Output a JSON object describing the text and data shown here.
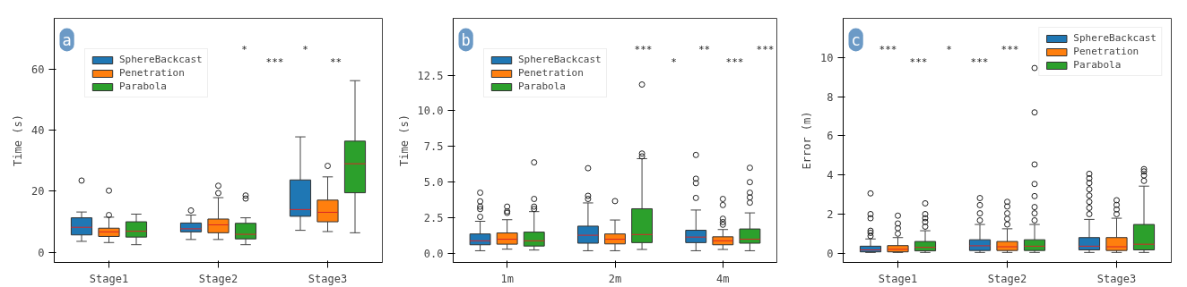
{
  "chart_data": [
    {
      "type": "box",
      "title": "a",
      "ylabel": "Time (s)",
      "categories": [
        "Stage1",
        "Stage2",
        "Stage3"
      ],
      "ylim": [
        -3.3,
        76.6
      ],
      "yticks": [
        0,
        20,
        40,
        60
      ],
      "grid": false,
      "legend": "top left",
      "series": [
        {
          "name": "SphereBackcast",
          "color": "#1f77b4",
          "boxes": [
            {
              "low": 3.6,
              "q1": 5.7,
              "median": 8.2,
              "q3": 11.3,
              "high": 13.2,
              "outliers": [
                23.5
              ]
            },
            {
              "low": 4.2,
              "q1": 6.7,
              "median": 7.7,
              "q3": 9.6,
              "high": 12.2,
              "outliers": [
                13.7
              ]
            },
            {
              "low": 7.2,
              "q1": 11.8,
              "median": 14.0,
              "q3": 23.7,
              "high": 37.8
            }
          ]
        },
        {
          "name": "Penetration",
          "color": "#ff7f0e",
          "boxes": [
            {
              "low": 3.2,
              "q1": 5.2,
              "median": 6.7,
              "q3": 7.9,
              "high": 11.5,
              "outliers": [
                12.2,
                20.2
              ]
            },
            {
              "low": 4.2,
              "q1": 6.4,
              "median": 9.0,
              "q3": 10.9,
              "high": 17.9,
              "outliers": [
                19.4,
                21.8
              ]
            },
            {
              "low": 6.8,
              "q1": 10.0,
              "median": 13.1,
              "q3": 17.1,
              "high": 24.7,
              "outliers": [
                28.3
              ]
            }
          ]
        },
        {
          "name": "Parabola",
          "color": "#2ca02c",
          "boxes": [
            {
              "low": 2.5,
              "q1": 5.0,
              "median": 6.9,
              "q3": 10.0,
              "high": 12.5
            },
            {
              "low": 2.5,
              "q1": 4.4,
              "median": 5.9,
              "q3": 9.5,
              "high": 11.3,
              "outliers": [
                17.6,
                18.6
              ]
            },
            {
              "low": 6.4,
              "q1": 19.5,
              "median": 29.0,
              "q3": 36.4,
              "high": 56.2
            }
          ]
        }
      ],
      "annotations": [
        "*",
        "***",
        "*",
        "**"
      ]
    },
    {
      "type": "box",
      "title": "b",
      "ylabel": "Time (s)",
      "categories": [
        "1m",
        "2m",
        "4m"
      ],
      "ylim": [
        -0.65,
        16.5
      ],
      "yticks": [
        {
          "value": 0,
          "label": "0.0"
        },
        {
          "value": 2.5,
          "label": "2.5"
        },
        {
          "value": 5,
          "label": "5.0"
        },
        {
          "value": 7.5,
          "label": "7.5"
        },
        {
          "value": 10,
          "label": "10.0"
        },
        {
          "value": 12.5,
          "label": "12.5"
        }
      ],
      "grid": false,
      "legend": "top left",
      "series": [
        {
          "name": "SphereBackcast",
          "color": "#1f77b4",
          "boxes": [
            {
              "low": 0.17,
              "q1": 0.59,
              "median": 0.87,
              "q3": 1.35,
              "high": 2.24,
              "outliers": [
                2.55,
                3.1,
                3.27,
                3.64,
                4.25
              ]
            },
            {
              "low": 0.17,
              "q1": 0.7,
              "median": 1.26,
              "q3": 1.9,
              "high": 3.53,
              "outliers": [
                3.81,
                4.03,
                5.97
              ]
            },
            {
              "low": 0.17,
              "q1": 0.74,
              "median": 1.13,
              "q3": 1.61,
              "high": 3.03,
              "outliers": [
                3.88,
                4.92,
                5.23,
                6.9
              ]
            }
          ]
        },
        {
          "name": "Penetration",
          "color": "#ff7f0e",
          "boxes": [
            {
              "low": 0.28,
              "q1": 0.63,
              "median": 0.98,
              "q3": 1.42,
              "high": 2.35,
              "outliers": [
                2.83,
                2.94,
                3.27
              ]
            },
            {
              "low": 0.17,
              "q1": 0.65,
              "median": 0.98,
              "q3": 1.35,
              "high": 2.33,
              "outliers": [
                3.66
              ]
            },
            {
              "low": 0.26,
              "q1": 0.59,
              "median": 0.87,
              "q3": 1.15,
              "high": 1.66,
              "outliers": [
                2.0,
                2.18,
                2.42,
                3.38,
                3.81
              ]
            }
          ]
        },
        {
          "name": "Parabola",
          "color": "#2ca02c",
          "boxes": [
            {
              "low": 0.22,
              "q1": 0.5,
              "median": 0.87,
              "q3": 1.48,
              "high": 2.92,
              "outliers": [
                3.1,
                3.27,
                3.81,
                6.38
              ]
            },
            {
              "low": 0.26,
              "q1": 0.74,
              "median": 1.31,
              "q3": 3.12,
              "high": 6.64,
              "outliers": [
                6.8,
                7.0,
                11.85
              ]
            },
            {
              "low": 0.17,
              "q1": 0.7,
              "median": 0.98,
              "q3": 1.7,
              "high": 2.83,
              "outliers": [
                3.55,
                3.92,
                4.25,
                4.99,
                6.0
              ]
            }
          ]
        }
      ],
      "annotations": [
        "***",
        "*",
        "**",
        "***",
        "***"
      ]
    },
    {
      "type": "box",
      "title": "c",
      "ylabel": "Error (m)",
      "categories": [
        "Stage1",
        "Stage2",
        "Stage3"
      ],
      "ylim": [
        -0.48,
        12.0
      ],
      "yticks": [
        0,
        2,
        4,
        6,
        8,
        10
      ],
      "grid": false,
      "legend": "top right",
      "series": [
        {
          "name": "SphereBackcast",
          "color": "#1f77b4",
          "boxes": [
            {
              "low": 0.03,
              "q1": 0.06,
              "median": 0.16,
              "q3": 0.35,
              "high": 0.72,
              "outliers": [
                0.87,
                1.03,
                1.14,
                1.78,
                1.99,
                3.05
              ]
            },
            {
              "low": 0.03,
              "q1": 0.13,
              "median": 0.37,
              "q3": 0.68,
              "high": 1.46,
              "outliers": [
                1.67,
                2.03,
                2.45,
                2.81
              ]
            },
            {
              "low": 0.03,
              "q1": 0.16,
              "median": 0.35,
              "q3": 0.79,
              "high": 1.72,
              "outliers": [
                1.99,
                2.31,
                2.62,
                2.94,
                3.26,
                3.58,
                3.82,
                4.05
              ]
            }
          ]
        },
        {
          "name": "Penetration",
          "color": "#ff7f0e",
          "boxes": [
            {
              "low": 0.03,
              "q1": 0.06,
              "median": 0.19,
              "q3": 0.38,
              "high": 0.79,
              "outliers": [
                0.99,
                1.27,
                1.51,
                1.91
              ]
            },
            {
              "low": 0.03,
              "q1": 0.13,
              "median": 0.32,
              "q3": 0.59,
              "high": 1.24,
              "outliers": [
                1.46,
                1.75,
                2.03,
                2.38,
                2.62
              ]
            },
            {
              "low": 0.03,
              "q1": 0.13,
              "median": 0.32,
              "q3": 0.79,
              "high": 1.78,
              "outliers": [
                1.99,
                2.23,
                2.46,
                2.7
              ]
            }
          ]
        },
        {
          "name": "Parabola",
          "color": "#2ca02c",
          "boxes": [
            {
              "low": 0.03,
              "q1": 0.11,
              "median": 0.29,
              "q3": 0.59,
              "high": 1.14,
              "outliers": [
                1.35,
                1.59,
                1.78,
                1.99,
                2.54
              ]
            },
            {
              "low": 0.03,
              "q1": 0.13,
              "median": 0.35,
              "q3": 0.68,
              "high": 1.46,
              "outliers": [
                1.67,
                2.03,
                2.35,
                2.91,
                3.53,
                4.53,
                7.19,
                9.46
              ]
            },
            {
              "low": 0.03,
              "q1": 0.16,
              "median": 0.45,
              "q3": 1.46,
              "high": 3.42,
              "outliers": [
                3.69,
                3.97,
                4.17,
                4.29
              ]
            }
          ]
        }
      ],
      "annotations": [
        "***",
        "***",
        "*",
        "***",
        "***"
      ]
    }
  ]
}
